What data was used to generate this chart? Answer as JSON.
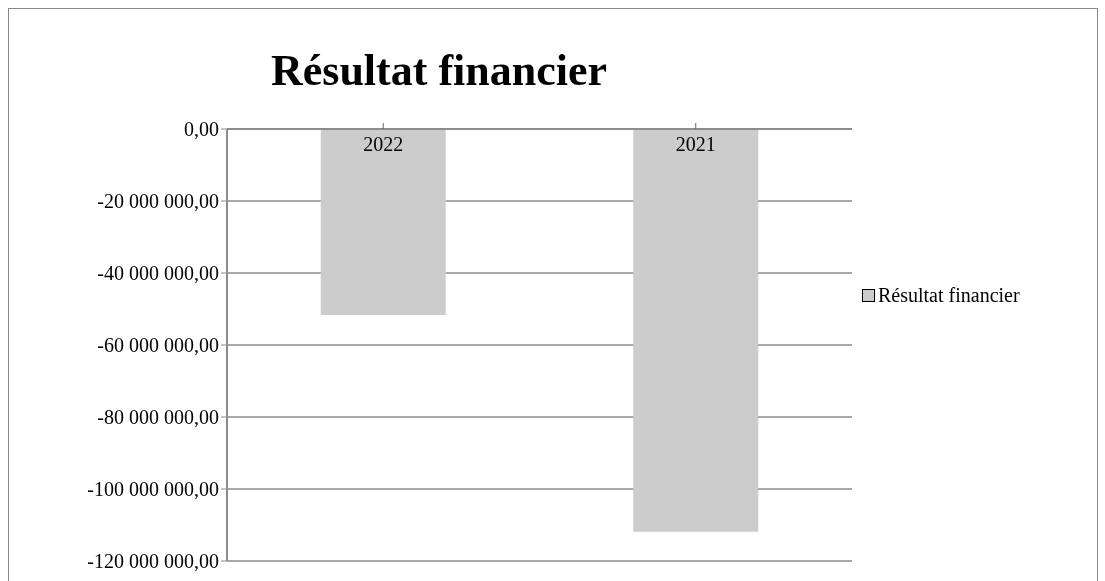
{
  "chart_data": {
    "type": "bar",
    "title": "Résultat financier",
    "categories": [
      "2022",
      "2021"
    ],
    "series": [
      {
        "name": "Résultat financier",
        "color": "#cccccc",
        "values": [
          -51700000,
          -111900000
        ]
      }
    ],
    "ylim": [
      -120000000,
      0
    ],
    "yticks": [
      {
        "value": 0,
        "label": "0,00"
      },
      {
        "value": -20000000,
        "label": "-20 000 000,00"
      },
      {
        "value": -40000000,
        "label": "-40 000 000,00"
      },
      {
        "value": -60000000,
        "label": "-60 000 000,00"
      },
      {
        "value": -80000000,
        "label": "-80 000 000,00"
      },
      {
        "value": -100000000,
        "label": "-100 000 000,00"
      },
      {
        "value": -120000000,
        "label": "-120 000 000,00"
      }
    ],
    "grid": "y",
    "legend": "right"
  }
}
